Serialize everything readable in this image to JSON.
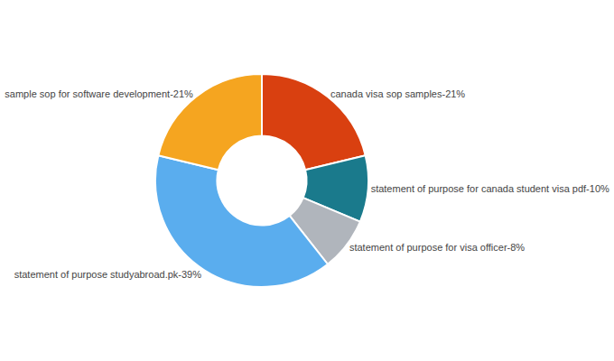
{
  "chart_data": {
    "type": "donut",
    "categories": [
      "canada visa sop samples-21%",
      "statement of purpose for canada student visa pdf-10%",
      "statement of purpose for visa officer-8%",
      "statement of purpose studyabroad.pk-39%",
      "sample sop for software development-21%"
    ],
    "values": [
      21,
      10,
      8,
      39,
      21
    ],
    "colors": [
      "#D94010",
      "#1A7A8C",
      "#B0B5BC",
      "#5AADEE",
      "#F5A520"
    ]
  }
}
